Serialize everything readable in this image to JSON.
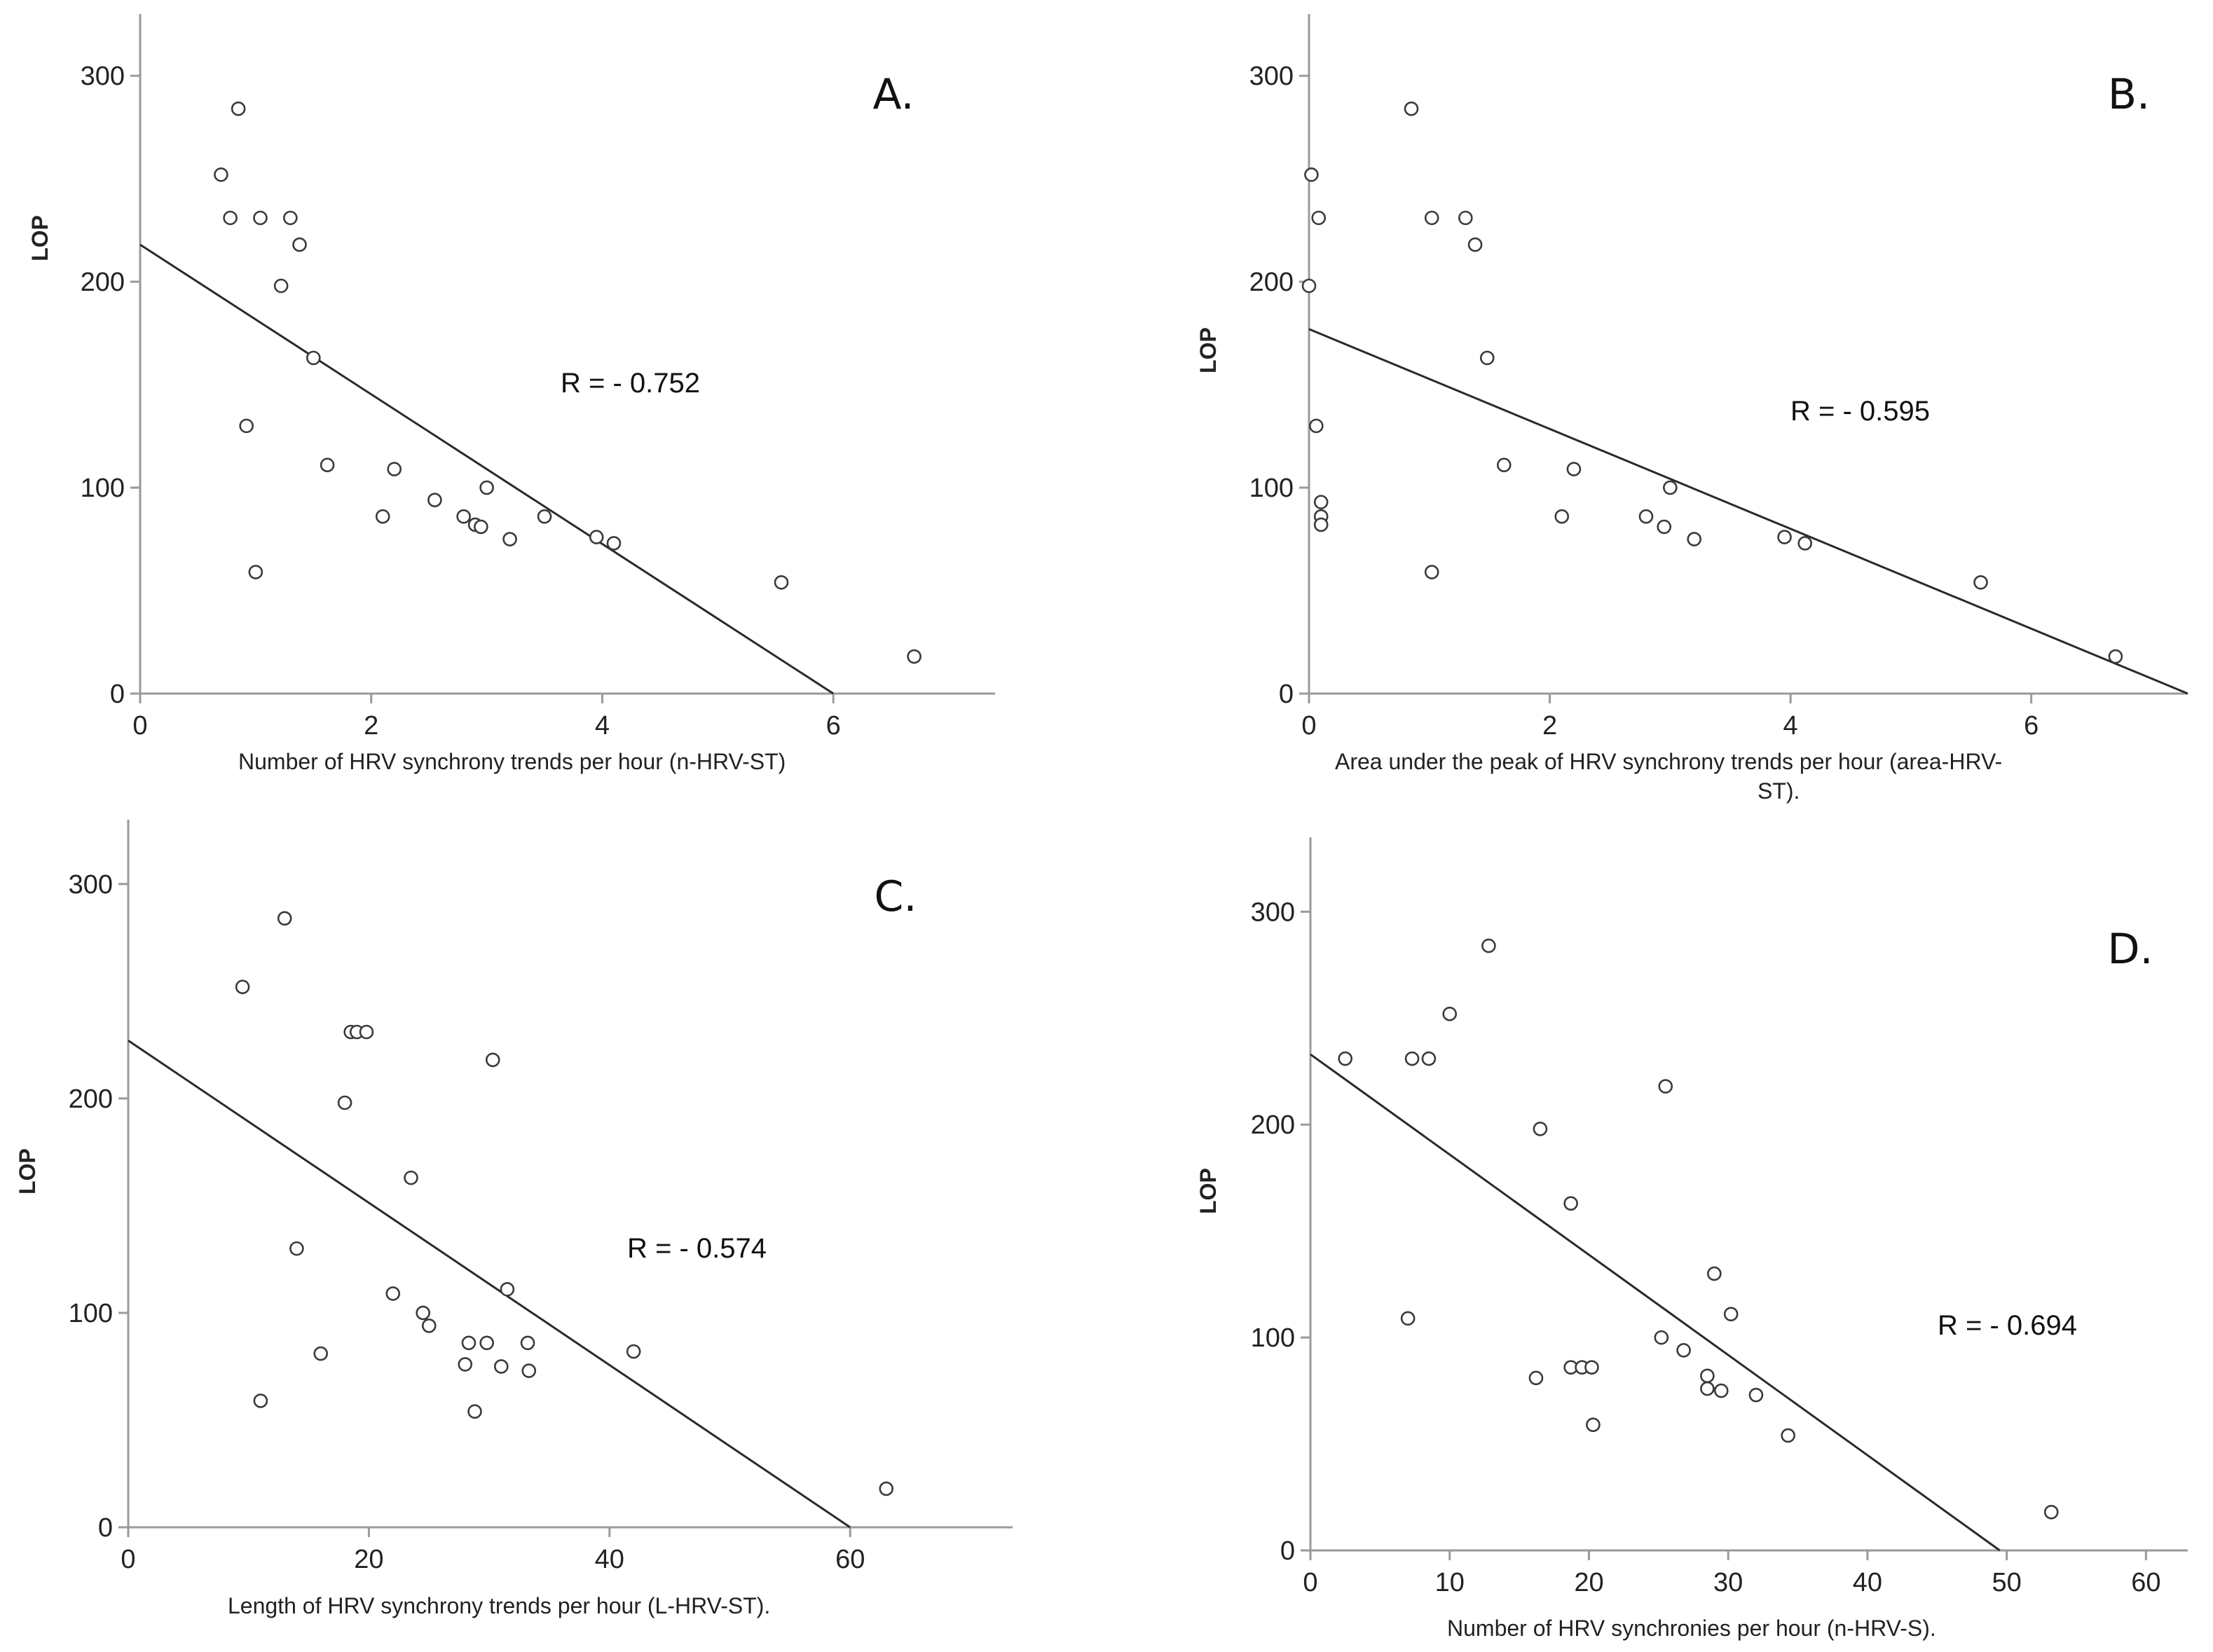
{
  "chart_data": [
    {
      "type": "scatter",
      "panel_label": "A.",
      "ylabel": "LOP",
      "xlabel_lines": [
        "Number of HRV synchrony trends per hour (n-HRV-ST)"
      ],
      "annotation": "R = - 0.752",
      "xlim": [
        0,
        7.4
      ],
      "ylim": [
        0,
        330
      ],
      "xticks": [
        0,
        2,
        4,
        6
      ],
      "yticks": [
        0,
        100,
        200,
        300
      ],
      "fit_line": {
        "x": [
          0,
          6.0
        ],
        "y": [
          218,
          0
        ]
      },
      "points": [
        [
          0.7,
          252
        ],
        [
          0.78,
          231
        ],
        [
          0.85,
          284
        ],
        [
          0.92,
          130
        ],
        [
          1.0,
          59
        ],
        [
          1.04,
          231
        ],
        [
          1.22,
          198
        ],
        [
          1.3,
          231
        ],
        [
          1.38,
          218
        ],
        [
          1.5,
          163
        ],
        [
          1.62,
          111
        ],
        [
          2.1,
          86
        ],
        [
          2.2,
          109
        ],
        [
          2.55,
          94
        ],
        [
          2.8,
          86
        ],
        [
          2.9,
          82
        ],
        [
          2.95,
          81
        ],
        [
          3.0,
          100
        ],
        [
          3.2,
          75
        ],
        [
          3.5,
          86
        ],
        [
          3.95,
          76
        ],
        [
          4.1,
          73
        ],
        [
          5.55,
          54
        ],
        [
          6.7,
          18
        ]
      ]
    },
    {
      "type": "scatter",
      "panel_label": "B.",
      "ylabel": "LOP",
      "xlabel_lines": [
        "Area under the peak of HRV synchrony trends per hour (area-HRV-",
        "ST)."
      ],
      "annotation": "R = - 0.595",
      "xlim": [
        0,
        7.3
      ],
      "ylim": [
        0,
        330
      ],
      "xticks": [
        0,
        2,
        4,
        6
      ],
      "yticks": [
        0,
        100,
        200,
        300
      ],
      "fit_line": {
        "x": [
          0,
          7.3
        ],
        "y": [
          177,
          0
        ]
      },
      "points": [
        [
          0.02,
          252
        ],
        [
          0.0,
          198
        ],
        [
          0.08,
          231
        ],
        [
          0.06,
          130
        ],
        [
          0.1,
          93
        ],
        [
          0.1,
          86
        ],
        [
          0.1,
          82
        ],
        [
          0.85,
          284
        ],
        [
          1.02,
          231
        ],
        [
          1.3,
          231
        ],
        [
          1.38,
          218
        ],
        [
          1.48,
          163
        ],
        [
          1.62,
          111
        ],
        [
          1.02,
          59
        ],
        [
          2.1,
          86
        ],
        [
          2.2,
          109
        ],
        [
          2.8,
          86
        ],
        [
          2.95,
          81
        ],
        [
          3.0,
          100
        ],
        [
          3.2,
          75
        ],
        [
          3.95,
          76
        ],
        [
          4.12,
          73
        ],
        [
          5.58,
          54
        ],
        [
          6.7,
          18
        ]
      ]
    },
    {
      "type": "scatter",
      "panel_label": "C.",
      "ylabel": "LOP",
      "xlabel_lines": [
        "Length of HRV synchrony trends per hour (L-HRV-ST)."
      ],
      "annotation": "R = - 0.574",
      "xlim": [
        0,
        73.5
      ],
      "ylim": [
        0,
        330
      ],
      "xticks": [
        0,
        20,
        40,
        60
      ],
      "yticks": [
        0,
        100,
        200,
        300
      ],
      "fit_line": {
        "x": [
          0,
          60
        ],
        "y": [
          227,
          0
        ]
      },
      "points": [
        [
          9.5,
          252
        ],
        [
          13.0,
          284
        ],
        [
          11.0,
          59
        ],
        [
          14.0,
          130
        ],
        [
          16.0,
          81
        ],
        [
          18.0,
          198
        ],
        [
          18.5,
          231
        ],
        [
          19.0,
          231
        ],
        [
          19.8,
          231
        ],
        [
          22.0,
          109
        ],
        [
          23.5,
          163
        ],
        [
          24.5,
          100
        ],
        [
          25.0,
          94
        ],
        [
          28.0,
          76
        ],
        [
          28.3,
          86
        ],
        [
          28.8,
          54
        ],
        [
          29.8,
          86
        ],
        [
          30.3,
          218
        ],
        [
          31.0,
          75
        ],
        [
          31.5,
          111
        ],
        [
          33.2,
          86
        ],
        [
          33.3,
          73
        ],
        [
          42.0,
          82
        ],
        [
          63.0,
          18
        ]
      ]
    },
    {
      "type": "scatter",
      "panel_label": "D.",
      "ylabel": "LOP",
      "xlabel_lines": [
        "Number of HRV synchronies per hour (n-HRV-S)."
      ],
      "annotation": "R = - 0.694",
      "xlim": [
        0,
        63
      ],
      "ylim": [
        0,
        335
      ],
      "xticks": [
        0,
        10,
        20,
        30,
        40,
        50,
        60
      ],
      "yticks": [
        0,
        100,
        200,
        300
      ],
      "fit_line": {
        "x": [
          0,
          49.5
        ],
        "y": [
          233,
          0
        ]
      },
      "points": [
        [
          2.5,
          231
        ],
        [
          7.3,
          231
        ],
        [
          8.5,
          231
        ],
        [
          10.0,
          252
        ],
        [
          12.8,
          284
        ],
        [
          7.0,
          109
        ],
        [
          16.5,
          198
        ],
        [
          16.2,
          81
        ],
        [
          18.7,
          163
        ],
        [
          18.7,
          86
        ],
        [
          19.5,
          86
        ],
        [
          20.2,
          86
        ],
        [
          20.3,
          59
        ],
        [
          25.2,
          100
        ],
        [
          25.5,
          218
        ],
        [
          26.8,
          94
        ],
        [
          28.5,
          82
        ],
        [
          28.5,
          76
        ],
        [
          29.0,
          130
        ],
        [
          29.5,
          75
        ],
        [
          30.2,
          111
        ],
        [
          32.0,
          73
        ],
        [
          34.3,
          54
        ],
        [
          53.2,
          18
        ]
      ]
    }
  ]
}
